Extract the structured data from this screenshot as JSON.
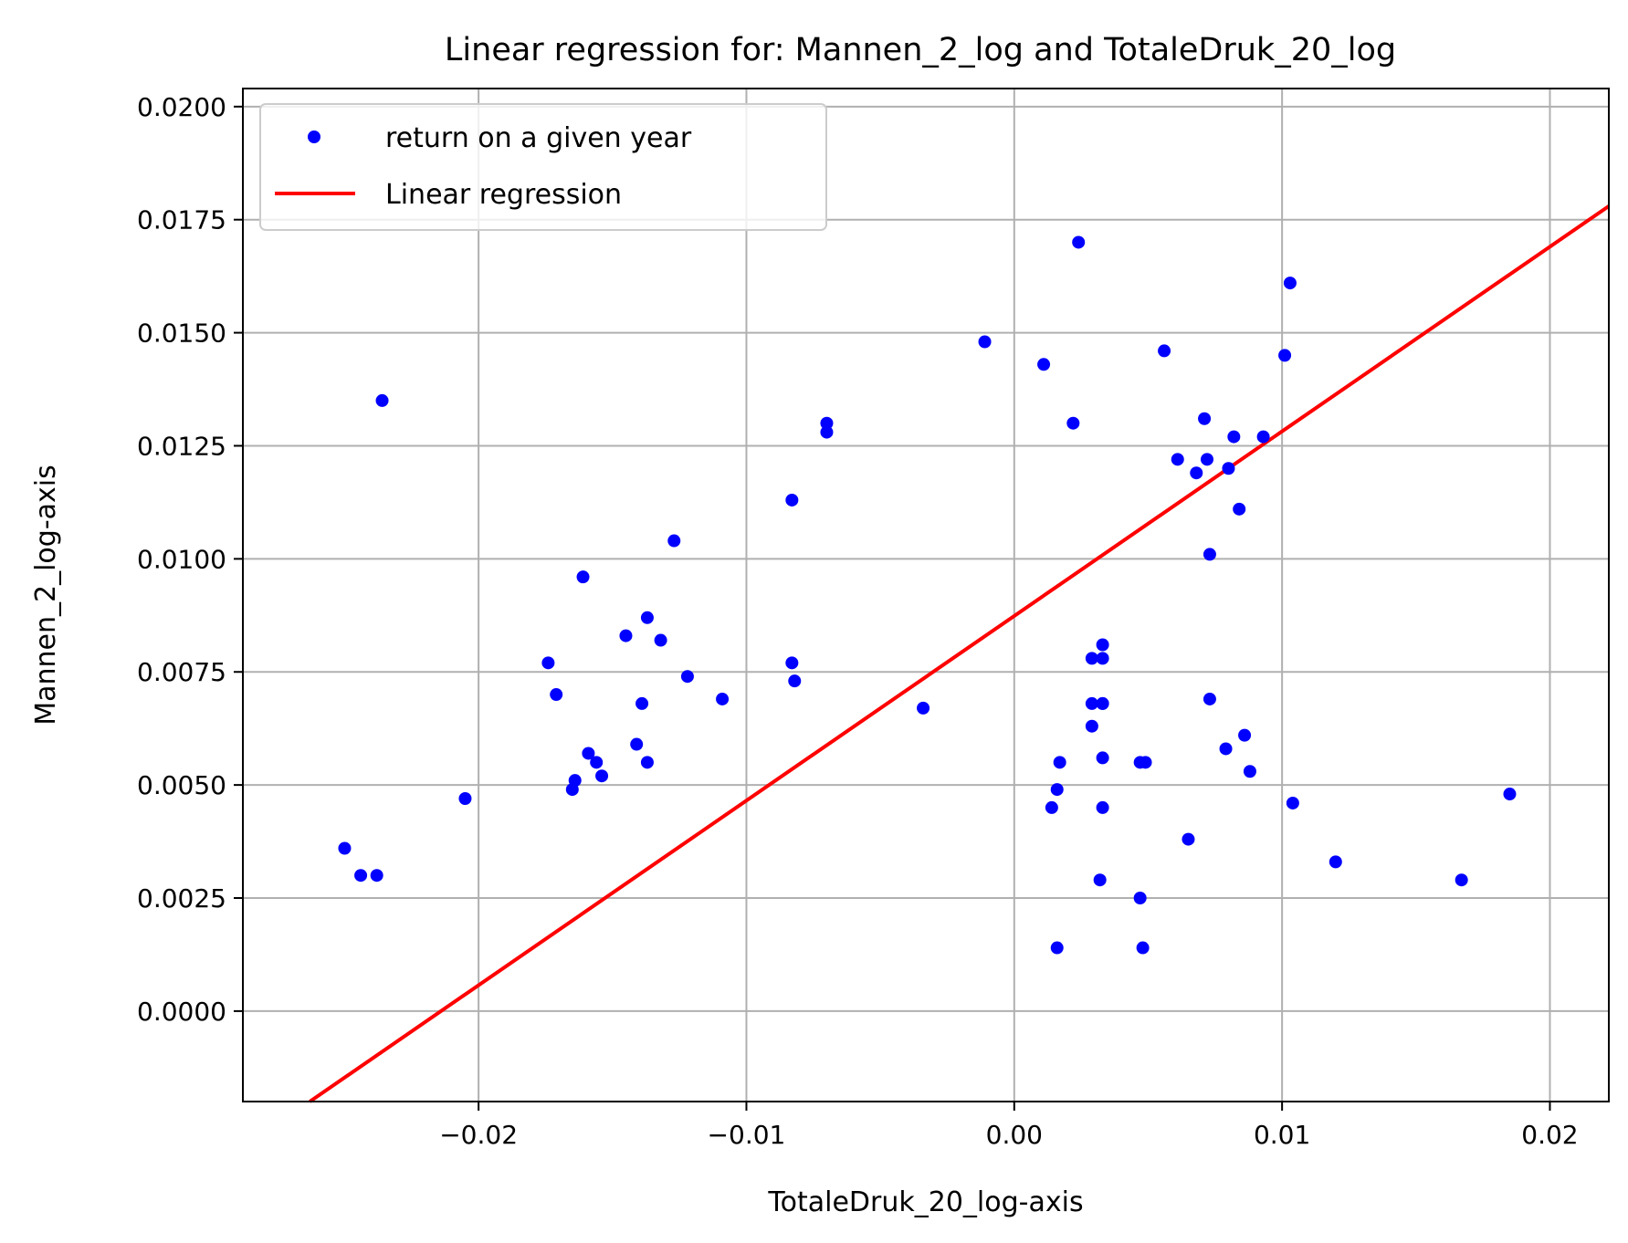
{
  "chart_data": {
    "type": "scatter",
    "title": "Linear regression for: Mannen_2_log and TotaleDruk_20_log",
    "xlabel": "TotaleDruk_20_log-axis",
    "ylabel": "Mannen_2_log-axis",
    "xlim": [
      -0.0288,
      0.0222
    ],
    "ylim": [
      -0.002,
      0.0204
    ],
    "xticks": [
      -0.02,
      -0.01,
      0.0,
      0.01,
      0.02
    ],
    "xtick_labels": [
      "−0.02",
      "−0.01",
      "0.00",
      "0.01",
      "0.02"
    ],
    "yticks": [
      0.0,
      0.0025,
      0.005,
      0.0075,
      0.01,
      0.0125,
      0.015,
      0.0175,
      0.02
    ],
    "ytick_labels": [
      "0.0000",
      "0.0025",
      "0.0050",
      "0.0075",
      "0.0100",
      "0.0125",
      "0.0150",
      "0.0175",
      "0.0200"
    ],
    "grid": true,
    "legend_position": "top-left",
    "series": [
      {
        "name": "return on a given year",
        "kind": "scatter",
        "color": "#0000ff",
        "points": [
          [
            -0.025,
            0.0036
          ],
          [
            -0.0244,
            0.003
          ],
          [
            -0.0238,
            0.003
          ],
          [
            -0.0236,
            0.0135
          ],
          [
            -0.0205,
            0.0047
          ],
          [
            -0.0174,
            0.0077
          ],
          [
            -0.0171,
            0.007
          ],
          [
            -0.0165,
            0.0049
          ],
          [
            -0.0164,
            0.0051
          ],
          [
            -0.0161,
            0.0096
          ],
          [
            -0.0159,
            0.0057
          ],
          [
            -0.0156,
            0.0055
          ],
          [
            -0.0154,
            0.0052
          ],
          [
            -0.0145,
            0.0083
          ],
          [
            -0.0141,
            0.0059
          ],
          [
            -0.0139,
            0.0068
          ],
          [
            -0.0137,
            0.0087
          ],
          [
            -0.0137,
            0.0055
          ],
          [
            -0.0132,
            0.0082
          ],
          [
            -0.0127,
            0.0104
          ],
          [
            -0.0122,
            0.0074
          ],
          [
            -0.0109,
            0.0069
          ],
          [
            -0.0083,
            0.0113
          ],
          [
            -0.0083,
            0.0077
          ],
          [
            -0.0082,
            0.0073
          ],
          [
            -0.007,
            0.013
          ],
          [
            -0.007,
            0.0128
          ],
          [
            -0.0034,
            0.0067
          ],
          [
            -0.0011,
            0.0148
          ],
          [
            0.0011,
            0.0143
          ],
          [
            0.0014,
            0.0045
          ],
          [
            0.0016,
            0.0049
          ],
          [
            0.0016,
            0.0014
          ],
          [
            0.0017,
            0.0055
          ],
          [
            0.0022,
            0.013
          ],
          [
            0.0024,
            0.017
          ],
          [
            0.0029,
            0.0078
          ],
          [
            0.0029,
            0.0068
          ],
          [
            0.0029,
            0.0063
          ],
          [
            0.0032,
            0.0029
          ],
          [
            0.0033,
            0.0078
          ],
          [
            0.0033,
            0.0081
          ],
          [
            0.0033,
            0.0068
          ],
          [
            0.0033,
            0.0068
          ],
          [
            0.0033,
            0.0056
          ],
          [
            0.0033,
            0.0045
          ],
          [
            0.0047,
            0.0055
          ],
          [
            0.0047,
            0.0025
          ],
          [
            0.0048,
            0.0014
          ],
          [
            0.0049,
            0.0055
          ],
          [
            0.0056,
            0.0146
          ],
          [
            0.0061,
            0.0122
          ],
          [
            0.0065,
            0.0038
          ],
          [
            0.0068,
            0.0119
          ],
          [
            0.0071,
            0.0131
          ],
          [
            0.0072,
            0.0122
          ],
          [
            0.0073,
            0.0101
          ],
          [
            0.0073,
            0.0069
          ],
          [
            0.0079,
            0.0058
          ],
          [
            0.008,
            0.012
          ],
          [
            0.0082,
            0.0127
          ],
          [
            0.0084,
            0.0111
          ],
          [
            0.0086,
            0.0061
          ],
          [
            0.0088,
            0.0053
          ],
          [
            0.0093,
            0.0127
          ],
          [
            0.0101,
            0.0145
          ],
          [
            0.0103,
            0.0161
          ],
          [
            0.0104,
            0.0046
          ],
          [
            0.012,
            0.0033
          ],
          [
            0.0167,
            0.0029
          ],
          [
            0.0185,
            0.0048
          ]
        ]
      },
      {
        "name": "Linear regression",
        "kind": "line",
        "color": "#ff0000",
        "points": [
          [
            -0.0263,
            -0.002
          ],
          [
            0.0222,
            0.0178
          ]
        ]
      }
    ]
  }
}
